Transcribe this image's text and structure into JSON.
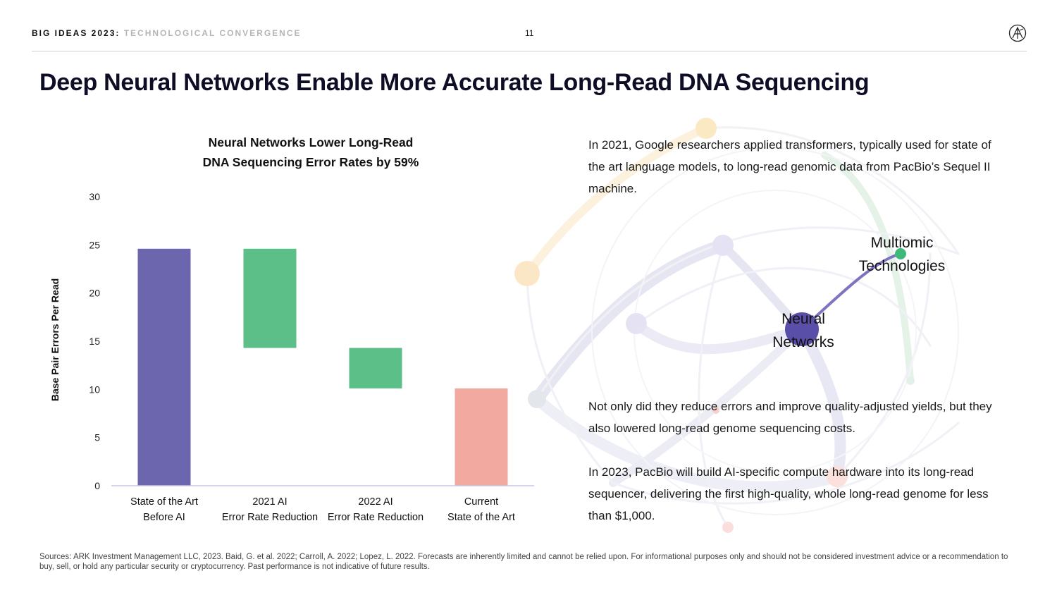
{
  "header": {
    "series": "BIG IDEAS 2023",
    "separator": ":",
    "topic": "TECHNOLOGICAL CONVERGENCE",
    "page_number": "11"
  },
  "title": "Deep Neural Networks Enable More Accurate Long-Read DNA Sequencing",
  "paragraphs": {
    "p1": "In 2021, Google researchers applied transformers, typically used for state of the art language models, to long-read genomic data from PacBio’s Sequel II machine.",
    "p2": "Not only did they reduce errors and improve quality-adjusted yields, but they also lowered long-read genome sequencing costs.",
    "p3": "In 2023, PacBio will build AI-specific compute hardware into its long-read sequencer, delivering the first high-quality, whole long-read genome for less than $1,000."
  },
  "network_labels": {
    "multiomic": "Multiomic Technologies",
    "neural": "Neural Networks"
  },
  "footer": "Sources: ARK Investment Management LLC, 2023. Baid, G. et al. 2022; Carroll, A. 2022; Lopez, L. 2022. Forecasts are inherently limited and cannot be relied upon. For informational purposes only and should not be considered investment advice or a recommendation to buy, sell, or hold any particular security or cryptocurrency. Past performance is not indicative of future results.",
  "colors": {
    "purple": "#6b66ad",
    "green": "#5dbf88",
    "salmon": "#f2a9a0",
    "network_purple": "#5a4fa8",
    "network_green": "#3fb97a"
  },
  "chart_data": {
    "type": "bar",
    "subtype": "waterfall",
    "title_lines": [
      "Neural Networks Lower Long-Read",
      "DNA Sequencing Error Rates by 59%"
    ],
    "ylabel": "Base Pair Errors Per Read",
    "ylim": [
      0,
      30
    ],
    "yticks": [
      0,
      5,
      10,
      15,
      20,
      25,
      30
    ],
    "grid": false,
    "categories": [
      {
        "lines": [
          "State of the Art",
          "Before AI"
        ],
        "base": 0,
        "top": 24.6,
        "color": "#6b66ad"
      },
      {
        "lines": [
          "2021 AI",
          "Error Rate Reduction"
        ],
        "base": 14.3,
        "top": 24.6,
        "color": "#5dbf88"
      },
      {
        "lines": [
          "2022 AI",
          "Error Rate Reduction"
        ],
        "base": 10.1,
        "top": 14.3,
        "color": "#5dbf88"
      },
      {
        "lines": [
          "Current",
          "State of the Art"
        ],
        "base": 0,
        "top": 10.1,
        "color": "#f2a9a0"
      }
    ]
  }
}
